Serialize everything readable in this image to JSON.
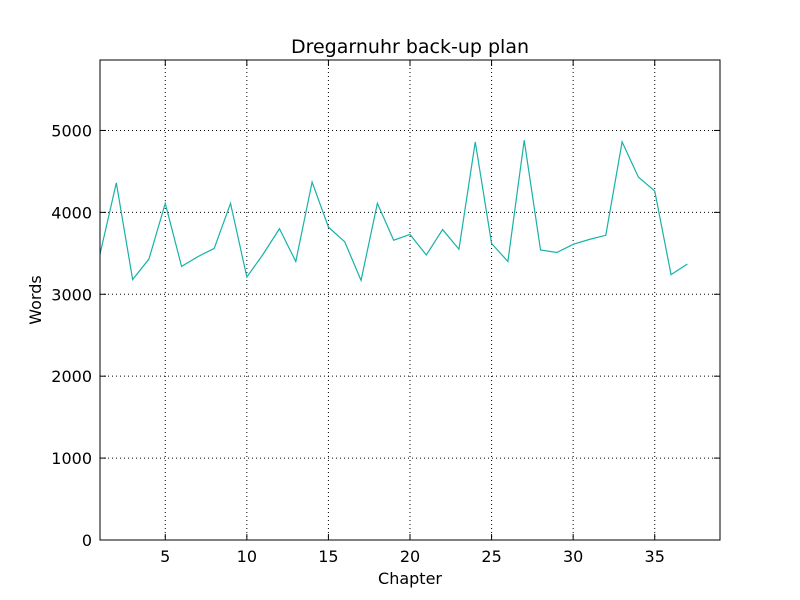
{
  "chart_data": {
    "type": "line",
    "title": "Dregarnuhr back-up plan",
    "xlabel": "Chapter",
    "ylabel": "Words",
    "xlim": [
      1,
      39
    ],
    "ylim": [
      0,
      5860
    ],
    "x_ticks": [
      5,
      10,
      15,
      20,
      25,
      30,
      35
    ],
    "y_ticks": [
      0,
      1000,
      2000,
      3000,
      4000,
      5000
    ],
    "grid": true,
    "legend": false,
    "series": [
      {
        "color": "#17b2a8",
        "x": [
          1,
          2,
          3,
          4,
          5,
          6,
          7,
          8,
          9,
          10,
          11,
          12,
          13,
          14,
          15,
          16,
          17,
          18,
          19,
          20,
          21,
          22,
          23,
          24,
          25,
          26,
          27,
          28,
          29,
          30,
          31,
          32,
          33,
          34,
          35,
          36,
          37
        ],
        "y": [
          3490,
          4360,
          3180,
          3430,
          4110,
          3340,
          3460,
          3560,
          4110,
          3210,
          3490,
          3800,
          3400,
          4370,
          3820,
          3640,
          3170,
          4110,
          3660,
          3730,
          3480,
          3790,
          3550,
          4860,
          3620,
          3400,
          4880,
          3540,
          3510,
          3610,
          3670,
          3720,
          4860,
          4430,
          4260,
          3240,
          3370
        ]
      }
    ]
  }
}
